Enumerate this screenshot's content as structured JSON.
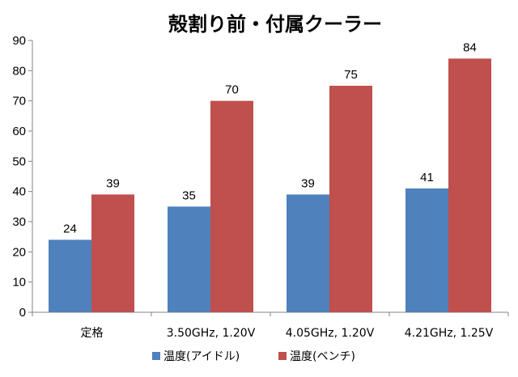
{
  "chart_data": {
    "type": "bar",
    "title": "殻割り前・付属クーラー",
    "xlabel": "",
    "ylabel": "",
    "categories": [
      "定格",
      "3.50GHz, 1.20V",
      "4.05GHz, 1.20V",
      "4.21GHz, 1.25V"
    ],
    "series": [
      {
        "name": "温度(アイドル)",
        "color": "#4f81bd",
        "values": [
          24,
          35,
          39,
          41
        ]
      },
      {
        "name": "温度(ベンチ)",
        "color": "#c0504d",
        "values": [
          39,
          70,
          75,
          84
        ]
      }
    ],
    "ylim": [
      0,
      90
    ],
    "yticks": [
      0,
      10,
      20,
      30,
      40,
      50,
      60,
      70,
      80,
      90
    ],
    "data_labels": true,
    "grid": false,
    "legend": "bottom"
  }
}
